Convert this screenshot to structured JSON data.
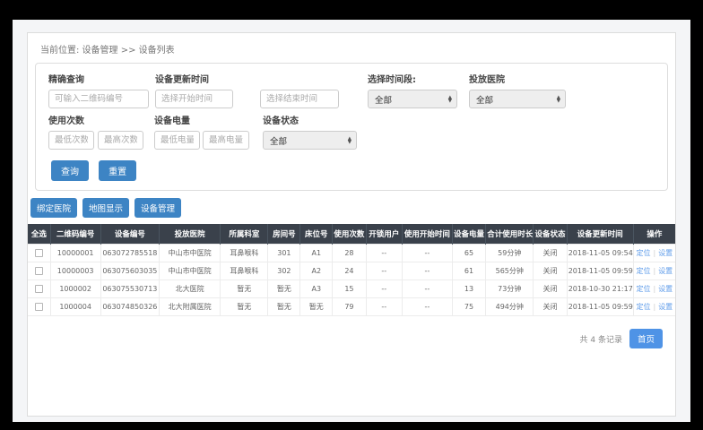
{
  "breadcrumb": {
    "text": "当前位置: 设备管理 >> 设备列表"
  },
  "filters": {
    "precise": {
      "label": "精确查询",
      "placeholder": "可输入二维码编号"
    },
    "update_time": {
      "label": "设备更新时间",
      "start_placeholder": "选择开始时间",
      "end_placeholder": "选择结束时间"
    },
    "period": {
      "label": "选择时间段:",
      "value": "全部"
    },
    "hospital": {
      "label": "投放医院",
      "value": "全部"
    },
    "usage": {
      "label": "使用次数",
      "min_placeholder": "最低次数",
      "max_placeholder": "最高次数"
    },
    "battery": {
      "label": "设备电量",
      "min_placeholder": "最低电量",
      "max_placeholder": "最高电量"
    },
    "status": {
      "label": "设备状态",
      "value": "全部"
    },
    "query_button": "查询",
    "reset_button": "重置"
  },
  "actions": {
    "bind_hospital": "绑定医院",
    "map_display": "地图显示",
    "device_manage": "设备管理"
  },
  "table": {
    "headers": [
      "全选",
      "二维码编号",
      "设备编号",
      "投放医院",
      "所属科室",
      "房间号",
      "床位号",
      "使用次数",
      "开锁用户",
      "使用开始时间",
      "设备电量",
      "合计使用时长",
      "设备状态",
      "设备更新时间",
      "操作"
    ],
    "rows": [
      {
        "cells": [
          "10000001",
          "063072785518",
          "中山市中医院",
          "耳鼻喉科",
          "301",
          "A1",
          "28",
          "--",
          "--",
          "65",
          "59分钟",
          "关闭",
          "2018-11-05 09:54"
        ]
      },
      {
        "cells": [
          "10000003",
          "063075603035",
          "中山市中医院",
          "耳鼻喉科",
          "302",
          "A2",
          "24",
          "--",
          "--",
          "61",
          "565分钟",
          "关闭",
          "2018-11-05 09:59"
        ]
      },
      {
        "cells": [
          "1000002",
          "063075530713",
          "北大医院",
          "暂无",
          "暂无",
          "A3",
          "15",
          "--",
          "--",
          "13",
          "73分钟",
          "关闭",
          "2018-10-30 21:17"
        ]
      },
      {
        "cells": [
          "1000004",
          "063074850326",
          "北大附属医院",
          "暂无",
          "暂无",
          "暂无",
          "79",
          "--",
          "--",
          "75",
          "494分钟",
          "关闭",
          "2018-11-05 09:59"
        ]
      }
    ],
    "op_locate": "定位",
    "op_divider": "|",
    "op_settings": "设置"
  },
  "pagination": {
    "total": "共 4 条记录",
    "first_page": "首页"
  },
  "select_arrow_up": "▲",
  "select_arrow_down": "▼",
  "colors": {
    "primary": "#3d84c4",
    "header_bg": "#3a414b",
    "link": "#5f9cea",
    "page_bg": "#f4f5f7",
    "first_btn": "#4f93e6"
  }
}
